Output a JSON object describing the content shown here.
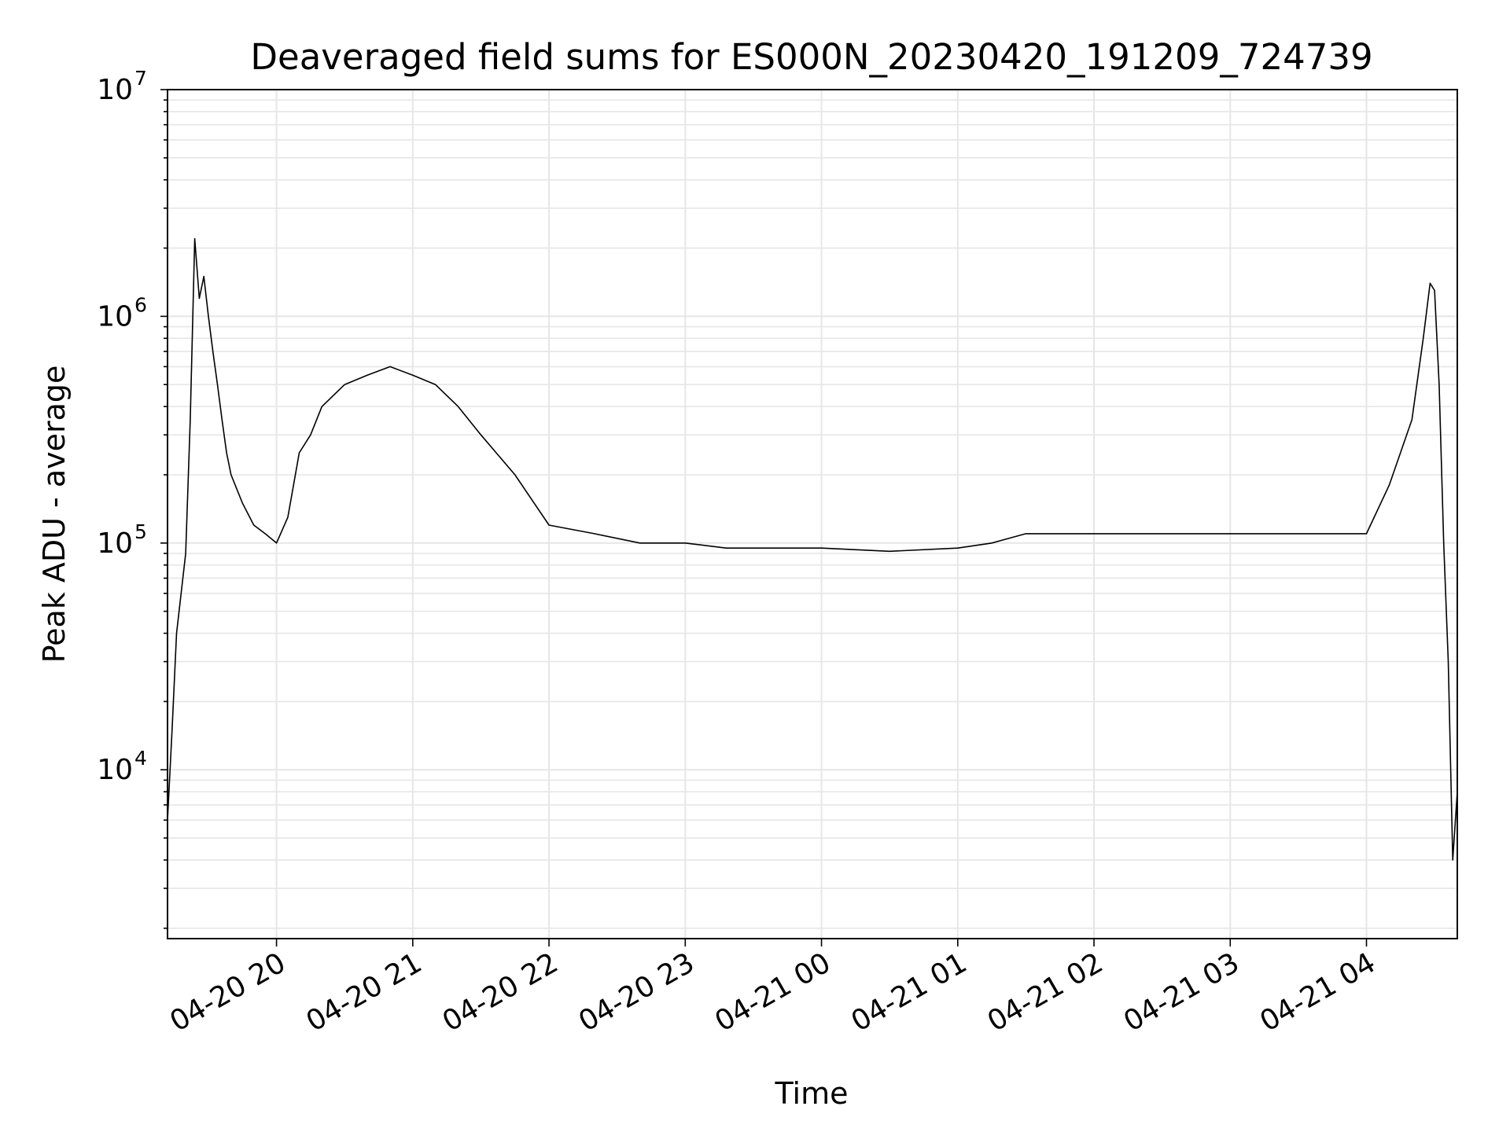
{
  "chart_data": {
    "type": "line",
    "title": "Deaveraged field sums for ES000N_20230420_191209_724739",
    "xlabel": "Time",
    "ylabel": "Peak ADU - average",
    "y_scale": "log",
    "ylim": [
      1800,
      10000000
    ],
    "xlim": [
      "2023-04-20 19:12",
      "2023-04-21 04:40"
    ],
    "grid": true,
    "line_color": "#000000",
    "grid_color": "#e6e6e6",
    "x_ticks": [
      {
        "value": "2023-04-20 20:00",
        "label": "04-20 20"
      },
      {
        "value": "2023-04-20 21:00",
        "label": "04-20 21"
      },
      {
        "value": "2023-04-20 22:00",
        "label": "04-20 22"
      },
      {
        "value": "2023-04-20 23:00",
        "label": "04-20 23"
      },
      {
        "value": "2023-04-21 00:00",
        "label": "04-21 00"
      },
      {
        "value": "2023-04-21 01:00",
        "label": "04-21 01"
      },
      {
        "value": "2023-04-21 02:00",
        "label": "04-21 02"
      },
      {
        "value": "2023-04-21 03:00",
        "label": "04-21 03"
      },
      {
        "value": "2023-04-21 04:00",
        "label": "04-21 04"
      }
    ],
    "y_ticks": [
      {
        "value": 10000,
        "base": "10",
        "exp": "4"
      },
      {
        "value": 100000,
        "base": "10",
        "exp": "5"
      },
      {
        "value": 1000000,
        "base": "10",
        "exp": "6"
      },
      {
        "value": 10000000,
        "base": "10",
        "exp": "7"
      }
    ],
    "series": [
      {
        "x": [
          "2023-04-20 19:12",
          "2023-04-20 19:14",
          "2023-04-20 19:16",
          "2023-04-20 19:18",
          "2023-04-20 19:20",
          "2023-04-20 19:22",
          "2023-04-20 19:24",
          "2023-04-20 19:26",
          "2023-04-20 19:28",
          "2023-04-20 19:30",
          "2023-04-20 19:32",
          "2023-04-20 19:34",
          "2023-04-20 19:36",
          "2023-04-20 19:38",
          "2023-04-20 19:40",
          "2023-04-20 19:45",
          "2023-04-20 19:50",
          "2023-04-20 19:55",
          "2023-04-20 20:00",
          "2023-04-20 20:05",
          "2023-04-20 20:10",
          "2023-04-20 20:15",
          "2023-04-20 20:20",
          "2023-04-20 20:30",
          "2023-04-20 20:40",
          "2023-04-20 20:50",
          "2023-04-20 21:00",
          "2023-04-20 21:10",
          "2023-04-20 21:20",
          "2023-04-20 21:30",
          "2023-04-20 21:45",
          "2023-04-20 22:00",
          "2023-04-20 22:20",
          "2023-04-20 22:40",
          "2023-04-20 23:00",
          "2023-04-20 23:18",
          "2023-04-20 23:30",
          "2023-04-21 00:00",
          "2023-04-21 00:30",
          "2023-04-21 01:00",
          "2023-04-21 01:15",
          "2023-04-21 01:30",
          "2023-04-21 02:00",
          "2023-04-21 02:30",
          "2023-04-21 03:00",
          "2023-04-21 03:30",
          "2023-04-21 04:00",
          "2023-04-21 04:10",
          "2023-04-21 04:20",
          "2023-04-21 04:25",
          "2023-04-21 04:28",
          "2023-04-21 04:30",
          "2023-04-21 04:32",
          "2023-04-21 04:34",
          "2023-04-21 04:36",
          "2023-04-21 04:38",
          "2023-04-21 04:40"
        ],
        "y": [
          6000,
          15000,
          40000,
          60000,
          90000,
          350000,
          2200000,
          1200000,
          1500000,
          1000000,
          700000,
          500000,
          350000,
          250000,
          200000,
          150000,
          120000,
          110000,
          100000,
          130000,
          250000,
          300000,
          400000,
          500000,
          550000,
          600000,
          550000,
          500000,
          400000,
          300000,
          200000,
          120000,
          110000,
          100000,
          100000,
          95000,
          95000,
          95000,
          92000,
          95000,
          100000,
          110000,
          110000,
          110000,
          110000,
          110000,
          110000,
          180000,
          350000,
          800000,
          1400000,
          1300000,
          500000,
          100000,
          30000,
          4000,
          8000
        ]
      }
    ]
  }
}
